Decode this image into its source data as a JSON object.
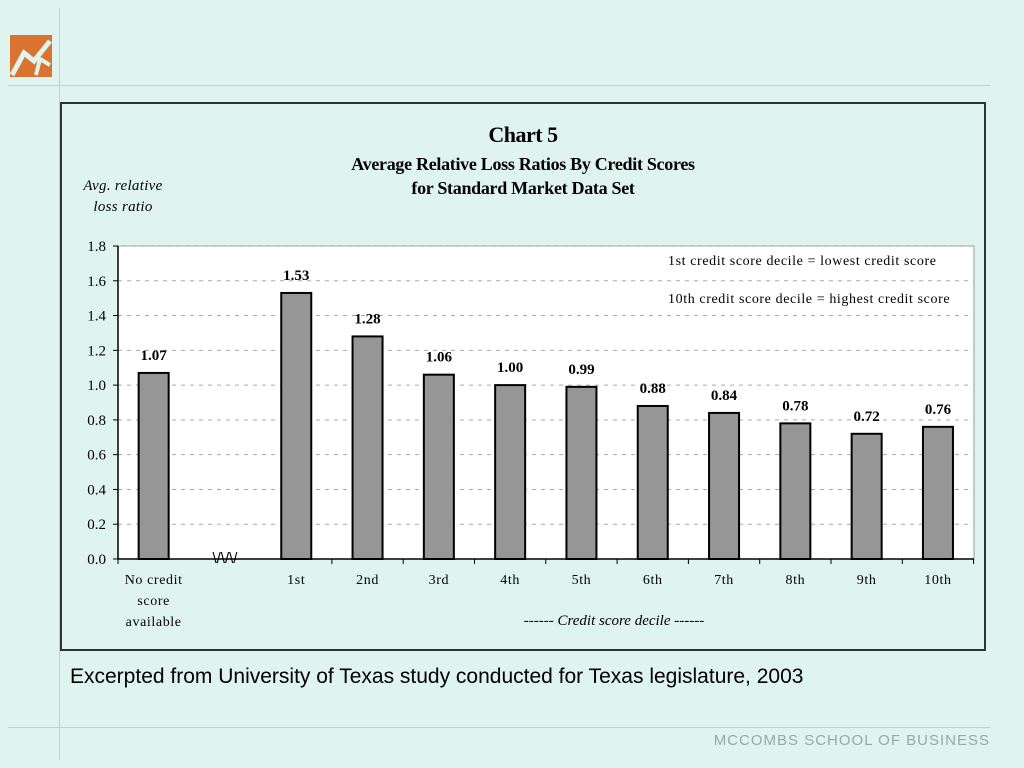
{
  "branding": {
    "school": "McCombs School of Business",
    "logo_icon": "mccombs-logo-icon",
    "logo_color": "#d9732f"
  },
  "caption": "Excerpted from University of Texas study conducted for Texas legislature, 2003",
  "chart_data": {
    "type": "bar",
    "title": "Chart 5",
    "subtitle": [
      "Average Relative Loss Ratios By Credit Scores",
      "for Standard Market Data Set"
    ],
    "ylabel": [
      "Avg. relative",
      "loss ratio"
    ],
    "xlabel": "------ Credit score decile ------",
    "ylim": [
      0,
      1.8
    ],
    "yticks": [
      "0.0",
      "0.2",
      "0.4",
      "0.6",
      "0.8",
      "1.0",
      "1.2",
      "1.4",
      "1.6",
      "1.8"
    ],
    "grid": true,
    "axis_break": "\\/\\/\\/",
    "categories": [
      [
        "No credit",
        "score",
        "available"
      ],
      [
        "1st"
      ],
      [
        "2nd"
      ],
      [
        "3rd"
      ],
      [
        "4th"
      ],
      [
        "5th"
      ],
      [
        "6th"
      ],
      [
        "7th"
      ],
      [
        "8th"
      ],
      [
        "9th"
      ],
      [
        "10th"
      ]
    ],
    "values": [
      1.07,
      1.53,
      1.28,
      1.06,
      1.0,
      0.99,
      0.88,
      0.84,
      0.78,
      0.72,
      0.76
    ],
    "labels": [
      "1.07",
      "1.53",
      "1.28",
      "1.06",
      "1.00",
      "0.99",
      "0.88",
      "0.84",
      "0.78",
      "0.72",
      "0.76"
    ],
    "annotations": [
      "1st credit score decile = lowest credit score",
      "10th credit score decile = highest credit score"
    ],
    "bar_color": "#969696"
  }
}
